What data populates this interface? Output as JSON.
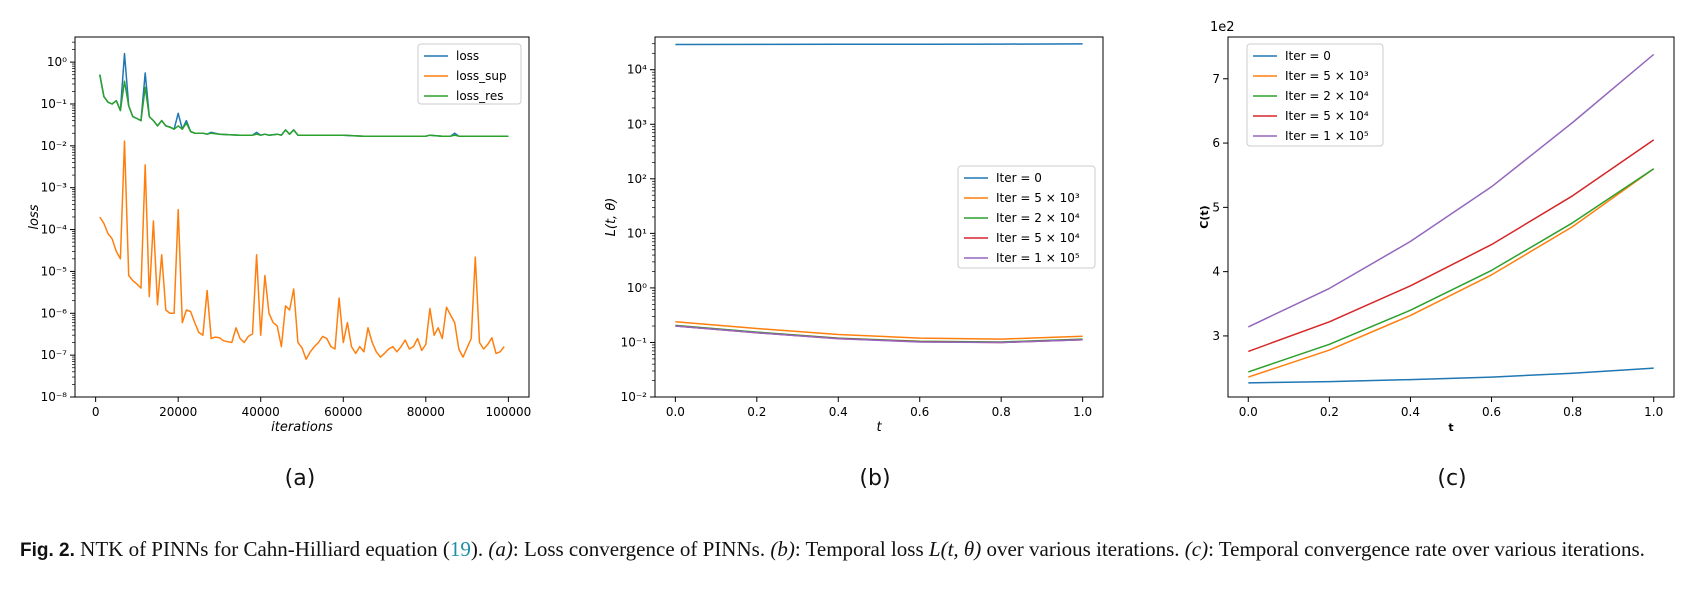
{
  "colors": {
    "blue": "#1f77b4",
    "orange": "#ff7f0e",
    "green": "#2ca02c",
    "red": "#d62728",
    "purple": "#9467bd"
  },
  "chart_data": [
    {
      "type": "line",
      "panel_label": "(a)",
      "xlabel": "iterations",
      "ylabel": "loss",
      "yscale": "log",
      "xlim": [
        -5000,
        105000
      ],
      "ylim_exp": [
        -8,
        0.6
      ],
      "x_ticks": [
        0,
        20000,
        40000,
        60000,
        80000,
        100000
      ],
      "x_tick_labels": [
        "0",
        "20000",
        "40000",
        "60000",
        "80000",
        "100000"
      ],
      "y_tick_exps": [
        -8,
        -7,
        -6,
        -5,
        -4,
        -3,
        -2,
        -1,
        0
      ],
      "y_tick_labels": [
        "10⁻⁸",
        "10⁻⁷",
        "10⁻⁶",
        "10⁻⁵",
        "10⁻⁴",
        "10⁻³",
        "10⁻²",
        "10⁻¹",
        "10⁰"
      ],
      "legend_position": "top-right",
      "grid": false,
      "series": [
        {
          "name": "loss",
          "color": "#1f77b4",
          "x": [
            1000,
            2000,
            3000,
            4000,
            5000,
            6000,
            7000,
            8000,
            9000,
            10000,
            11000,
            12000,
            13000,
            14000,
            15000,
            16000,
            17000,
            18000,
            19000,
            20000,
            21000,
            22000,
            23000,
            24000,
            25000,
            26000,
            27000,
            28000,
            30000,
            35000,
            38000,
            39000,
            40000,
            41000,
            42000,
            44000,
            45000,
            46000,
            47000,
            48000,
            49000,
            50000,
            55000,
            60000,
            65000,
            70000,
            75000,
            80000,
            81000,
            84000,
            86000,
            87000,
            88000,
            90000,
            95000,
            100000
          ],
          "y": [
            0.5,
            0.15,
            0.11,
            0.1,
            0.12,
            0.07,
            1.6,
            0.09,
            0.05,
            0.045,
            0.04,
            0.55,
            0.05,
            0.04,
            0.03,
            0.04,
            0.03,
            0.028,
            0.025,
            0.06,
            0.025,
            0.04,
            0.022,
            0.02,
            0.02,
            0.02,
            0.019,
            0.021,
            0.019,
            0.018,
            0.018,
            0.021,
            0.018,
            0.019,
            0.018,
            0.019,
            0.018,
            0.024,
            0.019,
            0.024,
            0.018,
            0.018,
            0.018,
            0.018,
            0.017,
            0.017,
            0.017,
            0.017,
            0.018,
            0.017,
            0.017,
            0.02,
            0.017,
            0.017,
            0.017,
            0.017
          ]
        },
        {
          "name": "loss_sup",
          "color": "#ff7f0e",
          "x": [
            1000,
            2000,
            3000,
            4000,
            5000,
            6000,
            7000,
            8000,
            9000,
            10000,
            11000,
            12000,
            13000,
            14000,
            15000,
            16000,
            17000,
            18000,
            19000,
            20000,
            21000,
            22000,
            23000,
            24000,
            25000,
            26000,
            27000,
            28000,
            29000,
            30000,
            31000,
            32000,
            33000,
            34000,
            35000,
            36000,
            37000,
            38000,
            39000,
            40000,
            41000,
            42000,
            43000,
            44000,
            45000,
            46000,
            47000,
            48000,
            49000,
            50000,
            51000,
            52000,
            53000,
            54000,
            55000,
            56000,
            57000,
            58000,
            59000,
            60000,
            61000,
            62000,
            63000,
            64000,
            65000,
            66000,
            67000,
            68000,
            69000,
            70000,
            71000,
            72000,
            73000,
            74000,
            75000,
            76000,
            77000,
            78000,
            79000,
            80000,
            81000,
            82000,
            83000,
            84000,
            85000,
            86000,
            87000,
            88000,
            89000,
            90000,
            91000,
            92000,
            93000,
            94000,
            95000,
            96000,
            97000,
            98000,
            99000
          ],
          "y": [
            0.0002,
            0.00014,
            8e-05,
            6e-05,
            3e-05,
            2e-05,
            0.013,
            8e-06,
            6e-06,
            5e-06,
            4e-06,
            0.0035,
            2.5e-06,
            0.00016,
            1.6e-06,
            2.5e-05,
            1.2e-06,
            1e-06,
            1e-06,
            0.0003,
            6e-07,
            1.2e-06,
            1.1e-06,
            6e-07,
            3.5e-07,
            3e-07,
            3.5e-06,
            2.5e-07,
            2.7e-07,
            2.6e-07,
            2.2e-07,
            2.1e-07,
            2e-07,
            4.5e-07,
            2.5e-07,
            2e-07,
            2.8e-07,
            3.2e-07,
            2.5e-05,
            3e-07,
            8e-06,
            1e-06,
            6e-07,
            5e-07,
            1.6e-07,
            1.5e-06,
            1.2e-06,
            3.8e-06,
            2e-07,
            1.5e-07,
            8e-08,
            1.2e-07,
            1.6e-07,
            2e-07,
            2.8e-07,
            2.5e-07,
            1.6e-07,
            1.4e-07,
            2.3e-06,
            2e-07,
            6e-07,
            1.6e-07,
            1.1e-07,
            1.6e-07,
            1.2e-07,
            4.5e-07,
            2e-07,
            1.2e-07,
            9e-08,
            1.1e-07,
            1.4e-07,
            1.6e-07,
            1.2e-07,
            1.6e-07,
            2.3e-07,
            1.4e-07,
            1.6e-07,
            2.5e-07,
            1.3e-07,
            1.8e-07,
            1.3e-06,
            3e-07,
            4.5e-07,
            2.5e-07,
            1.4e-06,
            9e-07,
            6e-07,
            1.4e-07,
            9e-08,
            1.5e-07,
            2.5e-07,
            2.2e-05,
            2e-07,
            1.4e-07,
            1.8e-07,
            2.6e-07,
            1.1e-07,
            1.2e-07,
            1.6e-07
          ]
        },
        {
          "name": "loss_res",
          "color": "#2ca02c",
          "x": [
            1000,
            2000,
            3000,
            4000,
            5000,
            6000,
            7000,
            8000,
            9000,
            10000,
            11000,
            12000,
            13000,
            14000,
            15000,
            16000,
            17000,
            18000,
            19000,
            20000,
            21000,
            22000,
            23000,
            24000,
            25000,
            26000,
            27000,
            28000,
            30000,
            35000,
            38000,
            39000,
            40000,
            41000,
            42000,
            44000,
            45000,
            46000,
            47000,
            48000,
            49000,
            50000,
            55000,
            60000,
            65000,
            70000,
            75000,
            80000,
            81000,
            84000,
            86000,
            87000,
            88000,
            90000,
            95000,
            100000
          ],
          "y": [
            0.5,
            0.15,
            0.11,
            0.1,
            0.12,
            0.07,
            0.35,
            0.09,
            0.05,
            0.045,
            0.04,
            0.25,
            0.05,
            0.04,
            0.03,
            0.04,
            0.03,
            0.028,
            0.025,
            0.03,
            0.025,
            0.035,
            0.022,
            0.02,
            0.02,
            0.02,
            0.019,
            0.02,
            0.019,
            0.018,
            0.018,
            0.019,
            0.018,
            0.019,
            0.018,
            0.019,
            0.018,
            0.024,
            0.019,
            0.024,
            0.018,
            0.018,
            0.018,
            0.018,
            0.017,
            0.017,
            0.017,
            0.017,
            0.018,
            0.017,
            0.017,
            0.018,
            0.017,
            0.017,
            0.017,
            0.017
          ]
        }
      ]
    },
    {
      "type": "line",
      "panel_label": "(b)",
      "xlabel": "t",
      "ylabel": "L(t, θ)",
      "yscale": "log",
      "xlim": [
        -0.05,
        1.05
      ],
      "ylim_exp": [
        -2,
        4.6
      ],
      "x_ticks": [
        0.0,
        0.2,
        0.4,
        0.6,
        0.8,
        1.0
      ],
      "x_tick_labels": [
        "0.0",
        "0.2",
        "0.4",
        "0.6",
        "0.8",
        "1.0"
      ],
      "y_tick_exps": [
        -2,
        -1,
        0,
        1,
        2,
        3,
        4
      ],
      "y_tick_labels": [
        "10⁻²",
        "10⁻¹",
        "10⁰",
        "10¹",
        "10²",
        "10³",
        "10⁴"
      ],
      "legend_position": "center-right",
      "grid": false,
      "series": [
        {
          "name": "Iter = 0",
          "color": "#1f77b4",
          "x": [
            0,
            0.2,
            0.4,
            0.6,
            0.8,
            1.0
          ],
          "y": [
            29000,
            29100,
            29200,
            29300,
            29500,
            29700
          ]
        },
        {
          "name": "Iter = 5 × 10³",
          "color": "#ff7f0e",
          "x": [
            0,
            0.2,
            0.4,
            0.6,
            0.8,
            1.0
          ],
          "y": [
            0.24,
            0.18,
            0.14,
            0.12,
            0.115,
            0.13
          ]
        },
        {
          "name": "Iter = 2 × 10⁴",
          "color": "#2ca02c",
          "x": [
            0,
            0.2,
            0.4,
            0.6,
            0.8,
            1.0
          ],
          "y": [
            0.205,
            0.155,
            0.12,
            0.105,
            0.102,
            0.115
          ]
        },
        {
          "name": "Iter = 5 × 10⁴",
          "color": "#d62728",
          "x": [
            0,
            0.2,
            0.4,
            0.6,
            0.8,
            1.0
          ],
          "y": [
            0.2,
            0.15,
            0.118,
            0.103,
            0.1,
            0.112
          ]
        },
        {
          "name": "Iter = 1 × 10⁵",
          "color": "#9467bd",
          "x": [
            0,
            0.2,
            0.4,
            0.6,
            0.8,
            1.0
          ],
          "y": [
            0.2,
            0.15,
            0.117,
            0.102,
            0.1,
            0.112
          ]
        }
      ]
    },
    {
      "type": "line",
      "panel_label": "(c)",
      "xlabel": "t",
      "ylabel": "C(t)",
      "multiplier": "1e2",
      "xlim": [
        -0.05,
        1.05
      ],
      "ylim": [
        2.05,
        7.65
      ],
      "x_ticks": [
        0.0,
        0.2,
        0.4,
        0.6,
        0.8,
        1.0
      ],
      "x_tick_labels": [
        "0.0",
        "0.2",
        "0.4",
        "0.6",
        "0.8",
        "1.0"
      ],
      "y_ticks": [
        3,
        4,
        5,
        6,
        7
      ],
      "y_tick_labels": [
        "3",
        "4",
        "5",
        "6",
        "7"
      ],
      "legend_position": "top-left",
      "grid": false,
      "series": [
        {
          "name": "Iter = 0",
          "color": "#1f77b4",
          "x": [
            0,
            0.2,
            0.4,
            0.6,
            0.8,
            1.0
          ],
          "y": [
            2.27,
            2.29,
            2.32,
            2.36,
            2.42,
            2.5
          ]
        },
        {
          "name": "Iter = 5 × 10³",
          "color": "#ff7f0e",
          "x": [
            0,
            0.2,
            0.4,
            0.6,
            0.8,
            1.0
          ],
          "y": [
            2.36,
            2.78,
            3.32,
            3.95,
            4.7,
            5.6
          ]
        },
        {
          "name": "Iter = 2 × 10⁴",
          "color": "#2ca02c",
          "x": [
            0,
            0.2,
            0.4,
            0.6,
            0.8,
            1.0
          ],
          "y": [
            2.44,
            2.87,
            3.4,
            4.02,
            4.76,
            5.6
          ]
        },
        {
          "name": "Iter = 5 × 10⁴",
          "color": "#d62728",
          "x": [
            0,
            0.2,
            0.4,
            0.6,
            0.8,
            1.0
          ],
          "y": [
            2.76,
            3.22,
            3.78,
            4.42,
            5.18,
            6.05
          ]
        },
        {
          "name": "Iter = 1 × 10⁵",
          "color": "#9467bd",
          "x": [
            0,
            0.2,
            0.4,
            0.6,
            0.8,
            1.0
          ],
          "y": [
            3.14,
            3.74,
            4.47,
            5.32,
            6.32,
            7.38
          ]
        }
      ]
    }
  ],
  "caption": {
    "label": "Fig. 2.",
    "part1": " NTK of PINNs for Cahn-Hilliard equation (",
    "ref": "19",
    "part2": "). ",
    "a": "(a)",
    "part3": ": Loss convergence of PINNs. ",
    "b": "(b)",
    "part4": ": Temporal loss ",
    "lt": "L(t, θ)",
    "part5": " over various iterations. ",
    "c": "(c)",
    "part6": ": Temporal convergence rate over various iterations."
  }
}
